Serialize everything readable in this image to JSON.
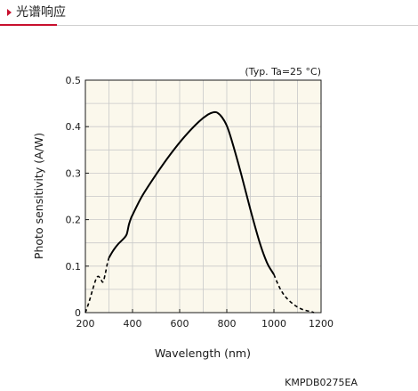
{
  "section": {
    "title": "光谱响应",
    "accent_color": "#c8102e"
  },
  "condition_note": "(Typ. Ta=25 °C)",
  "figure_code": "KMPDB0275EA",
  "chart_data": {
    "type": "line",
    "xlabel": "Wavelength (nm)",
    "ylabel": "Photo sensitivity (A/W)",
    "xlim": [
      200,
      1200
    ],
    "ylim": [
      0,
      0.5
    ],
    "xticks": [
      200,
      400,
      600,
      800,
      1000,
      1200
    ],
    "yticks": [
      0,
      0.1,
      0.2,
      0.3,
      0.4,
      0.5
    ],
    "xtick_labels": [
      "200",
      "400",
      "600",
      "800",
      "1000",
      "1200"
    ],
    "ytick_labels": [
      "0",
      "0.1",
      "0.2",
      "0.3",
      "0.4",
      "0.5"
    ],
    "grid": true,
    "plot_background": "#fbf8ec",
    "series": [
      {
        "style": "dashed",
        "color": "#000000",
        "x": [
          200,
          215,
          230,
          245,
          255,
          265,
          275,
          285,
          293,
          300
        ],
        "y": [
          0.0,
          0.022,
          0.048,
          0.072,
          0.078,
          0.072,
          0.066,
          0.085,
          0.105,
          0.118
        ]
      },
      {
        "style": "solid",
        "color": "#000000",
        "x": [
          300,
          320,
          340,
          360,
          375,
          385,
          395,
          400,
          440,
          500,
          560,
          620,
          680,
          720,
          745,
          760,
          780,
          800,
          820,
          860,
          900,
          940,
          970,
          990,
          1000
        ],
        "y": [
          0.118,
          0.135,
          0.148,
          0.158,
          0.168,
          0.19,
          0.205,
          0.21,
          0.25,
          0.297,
          0.34,
          0.378,
          0.41,
          0.426,
          0.431,
          0.43,
          0.42,
          0.402,
          0.372,
          0.3,
          0.222,
          0.15,
          0.108,
          0.09,
          0.082
        ]
      },
      {
        "style": "dashed",
        "color": "#000000",
        "x": [
          1000,
          1020,
          1040,
          1060,
          1080,
          1100,
          1120,
          1140,
          1160,
          1170
        ],
        "y": [
          0.082,
          0.058,
          0.04,
          0.028,
          0.019,
          0.012,
          0.007,
          0.004,
          0.002,
          0.0
        ]
      }
    ]
  }
}
